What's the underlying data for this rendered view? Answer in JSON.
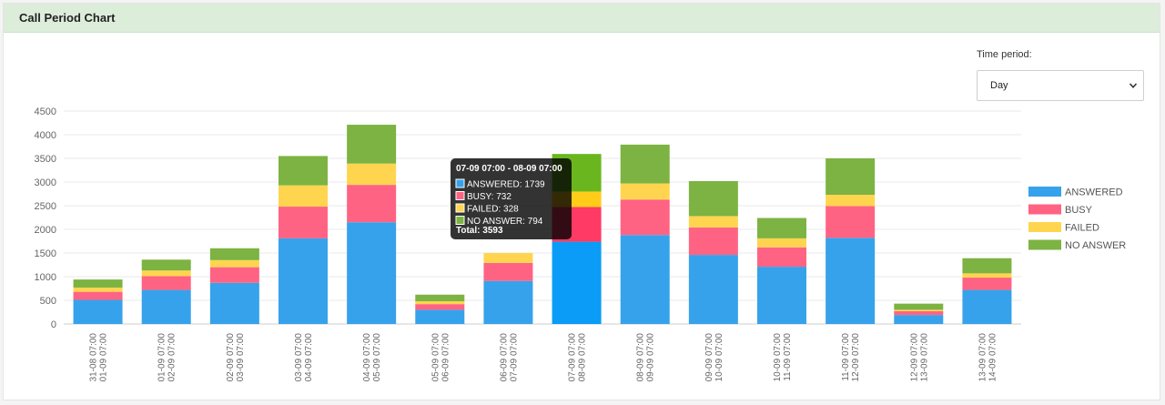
{
  "panel": {
    "title": "Call Period Chart"
  },
  "time_period": {
    "label": "Time period:",
    "selected": "Day"
  },
  "chart_data": {
    "type": "bar",
    "stacked": true,
    "title": "",
    "xlabel": "",
    "ylabel": "",
    "ylim": [
      0,
      4500
    ],
    "yticks": [
      0,
      500,
      1000,
      1500,
      2000,
      2500,
      3000,
      3500,
      4000,
      4500
    ],
    "grid": true,
    "legend_position": "right",
    "categories": [
      [
        "31-08 07:00",
        "01-09 07:00"
      ],
      [
        "01-09 07:00",
        "02-09 07:00"
      ],
      [
        "02-09 07:00",
        "03-09 07:00"
      ],
      [
        "03-09 07:00",
        "04-09 07:00"
      ],
      [
        "04-09 07:00",
        "05-09 07:00"
      ],
      [
        "05-09 07:00",
        "06-09 07:00"
      ],
      [
        "06-09 07:00",
        "07-09 07:00"
      ],
      [
        "07-09 07:00",
        "08-09 07:00"
      ],
      [
        "08-09 07:00",
        "09-09 07:00"
      ],
      [
        "09-09 07:00",
        "10-09 07:00"
      ],
      [
        "10-09 07:00",
        "11-09 07:00"
      ],
      [
        "11-09 07:00",
        "12-09 07:00"
      ],
      [
        "12-09 07:00",
        "13-09 07:00"
      ],
      [
        "13-09 07:00",
        "14-09 07:00"
      ]
    ],
    "series": [
      {
        "name": "ANSWERED",
        "color": "#36a2eb",
        "highlight_color": "#0a9cf6",
        "values": [
          510,
          720,
          870,
          1810,
          2150,
          300,
          910,
          1739,
          1880,
          1460,
          1210,
          1820,
          190,
          720
        ]
      },
      {
        "name": "BUSY",
        "color": "#ff6384",
        "highlight_color": "#ff3a64",
        "values": [
          170,
          290,
          330,
          670,
          790,
          120,
          380,
          732,
          750,
          580,
          410,
          670,
          80,
          260
        ]
      },
      {
        "name": "FAILED",
        "color": "#ffd54f",
        "highlight_color": "#ffcc1a",
        "values": [
          90,
          120,
          150,
          450,
          450,
          60,
          210,
          328,
          340,
          240,
          190,
          240,
          30,
          90
        ]
      },
      {
        "name": "NO ANSWER",
        "color": "#7cb342",
        "highlight_color": "#6ab61e",
        "values": [
          170,
          230,
          250,
          620,
          820,
          140,
          0,
          794,
          820,
          740,
          430,
          770,
          130,
          320
        ]
      }
    ],
    "highlight_index": 7,
    "tooltip": {
      "title": "07-09 07:00 - 08-09 07:00",
      "items": [
        "ANSWERED: 1739",
        "BUSY: 732",
        "FAILED: 328",
        "NO ANSWER: 794"
      ],
      "total": "Total: 3593"
    }
  }
}
